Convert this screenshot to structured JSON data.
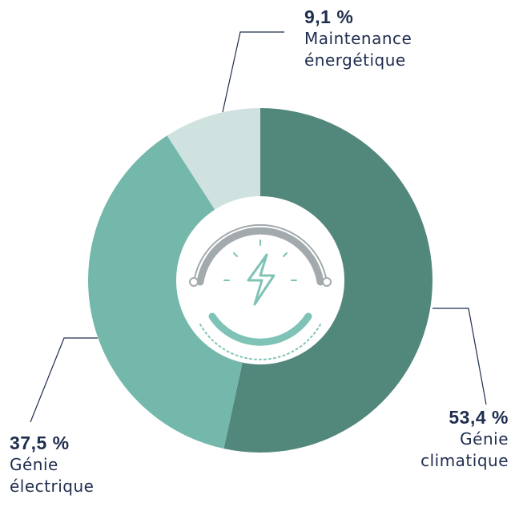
{
  "chart_data": {
    "type": "pie",
    "categories": [
      "Génie climatique",
      "Génie électrique",
      "Maintenance énergétique"
    ],
    "values": [
      53.4,
      37.5,
      9.1
    ],
    "value_labels": [
      "53,4 %",
      "37,5 %",
      "9,1 %"
    ],
    "colors": [
      "#52877c",
      "#74b8ac",
      "#cfe2df"
    ]
  }
}
